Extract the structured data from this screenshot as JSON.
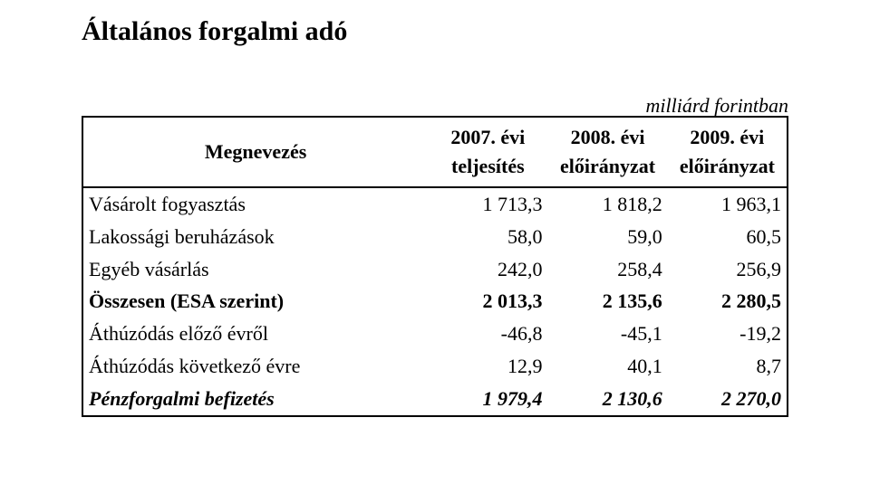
{
  "title": "Általános forgalmi adó",
  "unit_label": "milliárd forintban",
  "table": {
    "columns": [
      {
        "line1": "Megnevezés",
        "line2": ""
      },
      {
        "line1": "2007. évi",
        "line2": "teljesítés"
      },
      {
        "line1": "2008. évi",
        "line2": "előirányzat"
      },
      {
        "line1": "2009. évi",
        "line2": "előirányzat"
      }
    ],
    "rows": [
      {
        "name": "Vásárolt fogyasztás",
        "v1": "1 713,3",
        "v2": "1 818,2",
        "v3": "1 963,1",
        "style": ""
      },
      {
        "name": "Lakossági beruházások",
        "v1": "58,0",
        "v2": "59,0",
        "v3": "60,5",
        "style": ""
      },
      {
        "name": "Egyéb vásárlás",
        "v1": "242,0",
        "v2": "258,4",
        "v3": "256,9",
        "style": ""
      },
      {
        "name": "Összesen (ESA szerint)",
        "v1": "2 013,3",
        "v2": "2 135,6",
        "v3": "2 280,5",
        "style": "bold"
      },
      {
        "name": "Áthúzódás előző évről",
        "v1": "-46,8",
        "v2": "-45,1",
        "v3": "-19,2",
        "style": ""
      },
      {
        "name": "Áthúzódás következő évre",
        "v1": "12,9",
        "v2": "40,1",
        "v3": "8,7",
        "style": ""
      },
      {
        "name": "Pénzforgalmi befizetés",
        "v1": "1 979,4",
        "v2": "2 130,6",
        "v3": "2 270,0",
        "style": "bold italic"
      }
    ],
    "border_color": "#000000",
    "background_color": "#ffffff",
    "font_family": "Times New Roman",
    "header_fontsize_pt": 17,
    "body_fontsize_pt": 17
  }
}
